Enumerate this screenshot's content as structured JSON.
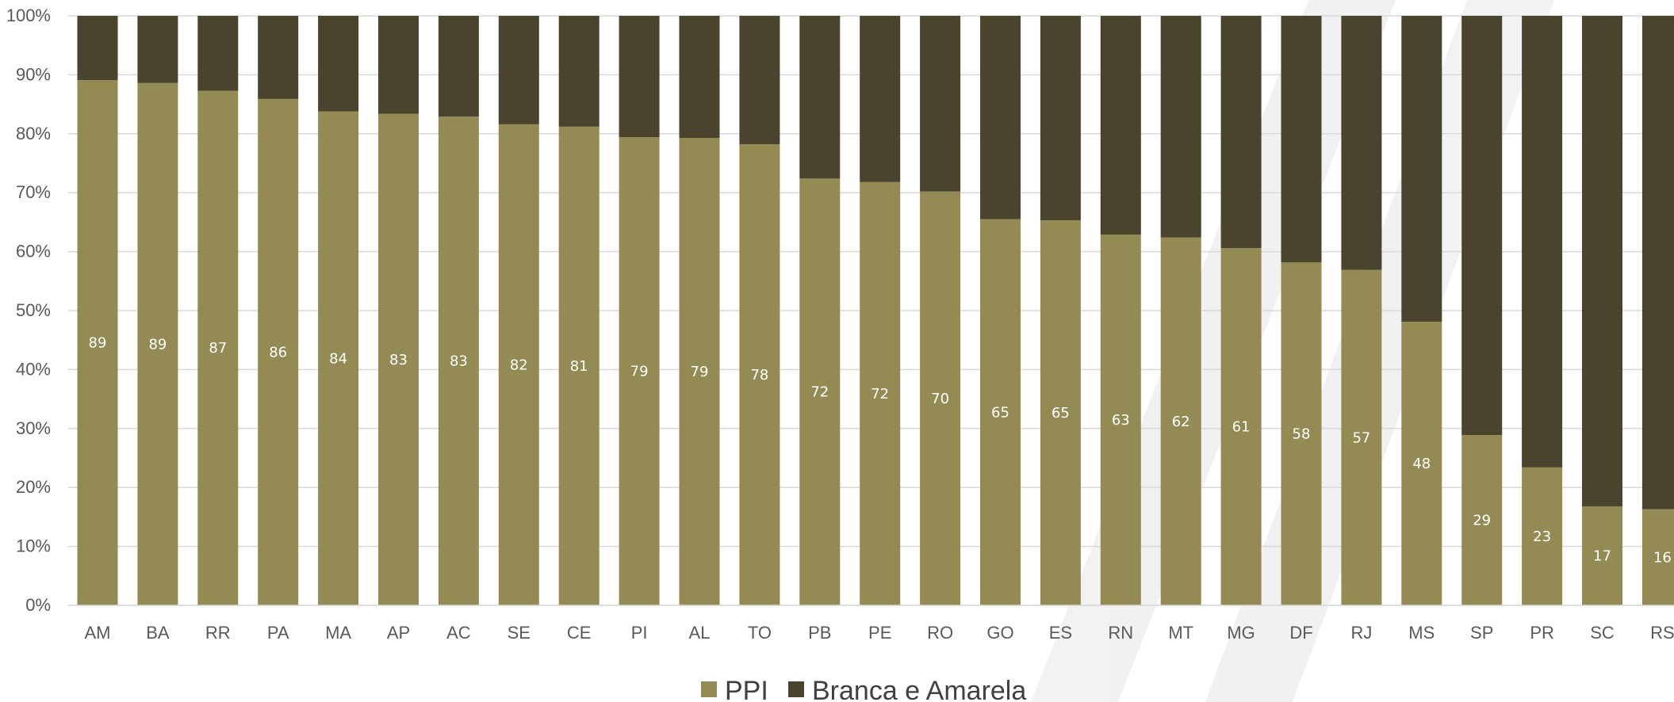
{
  "chart_data": {
    "type": "bar",
    "stacked": true,
    "title": "",
    "xlabel": "",
    "ylabel": "",
    "ylim": [
      0,
      100
    ],
    "yticks": [
      "0%",
      "10%",
      "20%",
      "30%",
      "40%",
      "50%",
      "60%",
      "70%",
      "80%",
      "90%",
      "100%"
    ],
    "grid": true,
    "legend_position": "bottom",
    "categories": [
      "AM",
      "BA",
      "RR",
      "PA",
      "MA",
      "AP",
      "AC",
      "SE",
      "CE",
      "PI",
      "AL",
      "TO",
      "PB",
      "PE",
      "RO",
      "GO",
      "ES",
      "RN",
      "MT",
      "MG",
      "DF",
      "RJ",
      "MS",
      "SP",
      "PR",
      "SC",
      "RS"
    ],
    "series": [
      {
        "name": "PPI",
        "color": "#938b53",
        "values": [
          89.1,
          88.6,
          87.3,
          85.9,
          83.8,
          83.4,
          82.9,
          81.6,
          81.2,
          79.4,
          79.3,
          78.2,
          72.4,
          71.8,
          70.2,
          65.5,
          65.3,
          62.9,
          62.4,
          60.6,
          58.2,
          56.9,
          48.1,
          28.9,
          23.4,
          16.8,
          16.3
        ],
        "labels": [
          "89",
          "89",
          "87",
          "86",
          "84",
          "83",
          "83",
          "82",
          "81",
          "79",
          "79",
          "78",
          "72",
          "72",
          "70",
          "65",
          "65",
          "63",
          "62",
          "61",
          "58",
          "57",
          "48",
          "29",
          "23",
          "17",
          "16"
        ]
      },
      {
        "name": "Branca e Amarela",
        "color": "#4a432d",
        "values": [
          10.9,
          11.4,
          12.7,
          14.1,
          16.2,
          16.6,
          17.1,
          18.4,
          18.8,
          20.6,
          20.7,
          21.8,
          27.6,
          28.2,
          29.8,
          34.5,
          34.7,
          37.1,
          37.6,
          39.4,
          41.8,
          43.1,
          51.9,
          71.1,
          76.6,
          83.2,
          83.7
        ]
      }
    ]
  }
}
